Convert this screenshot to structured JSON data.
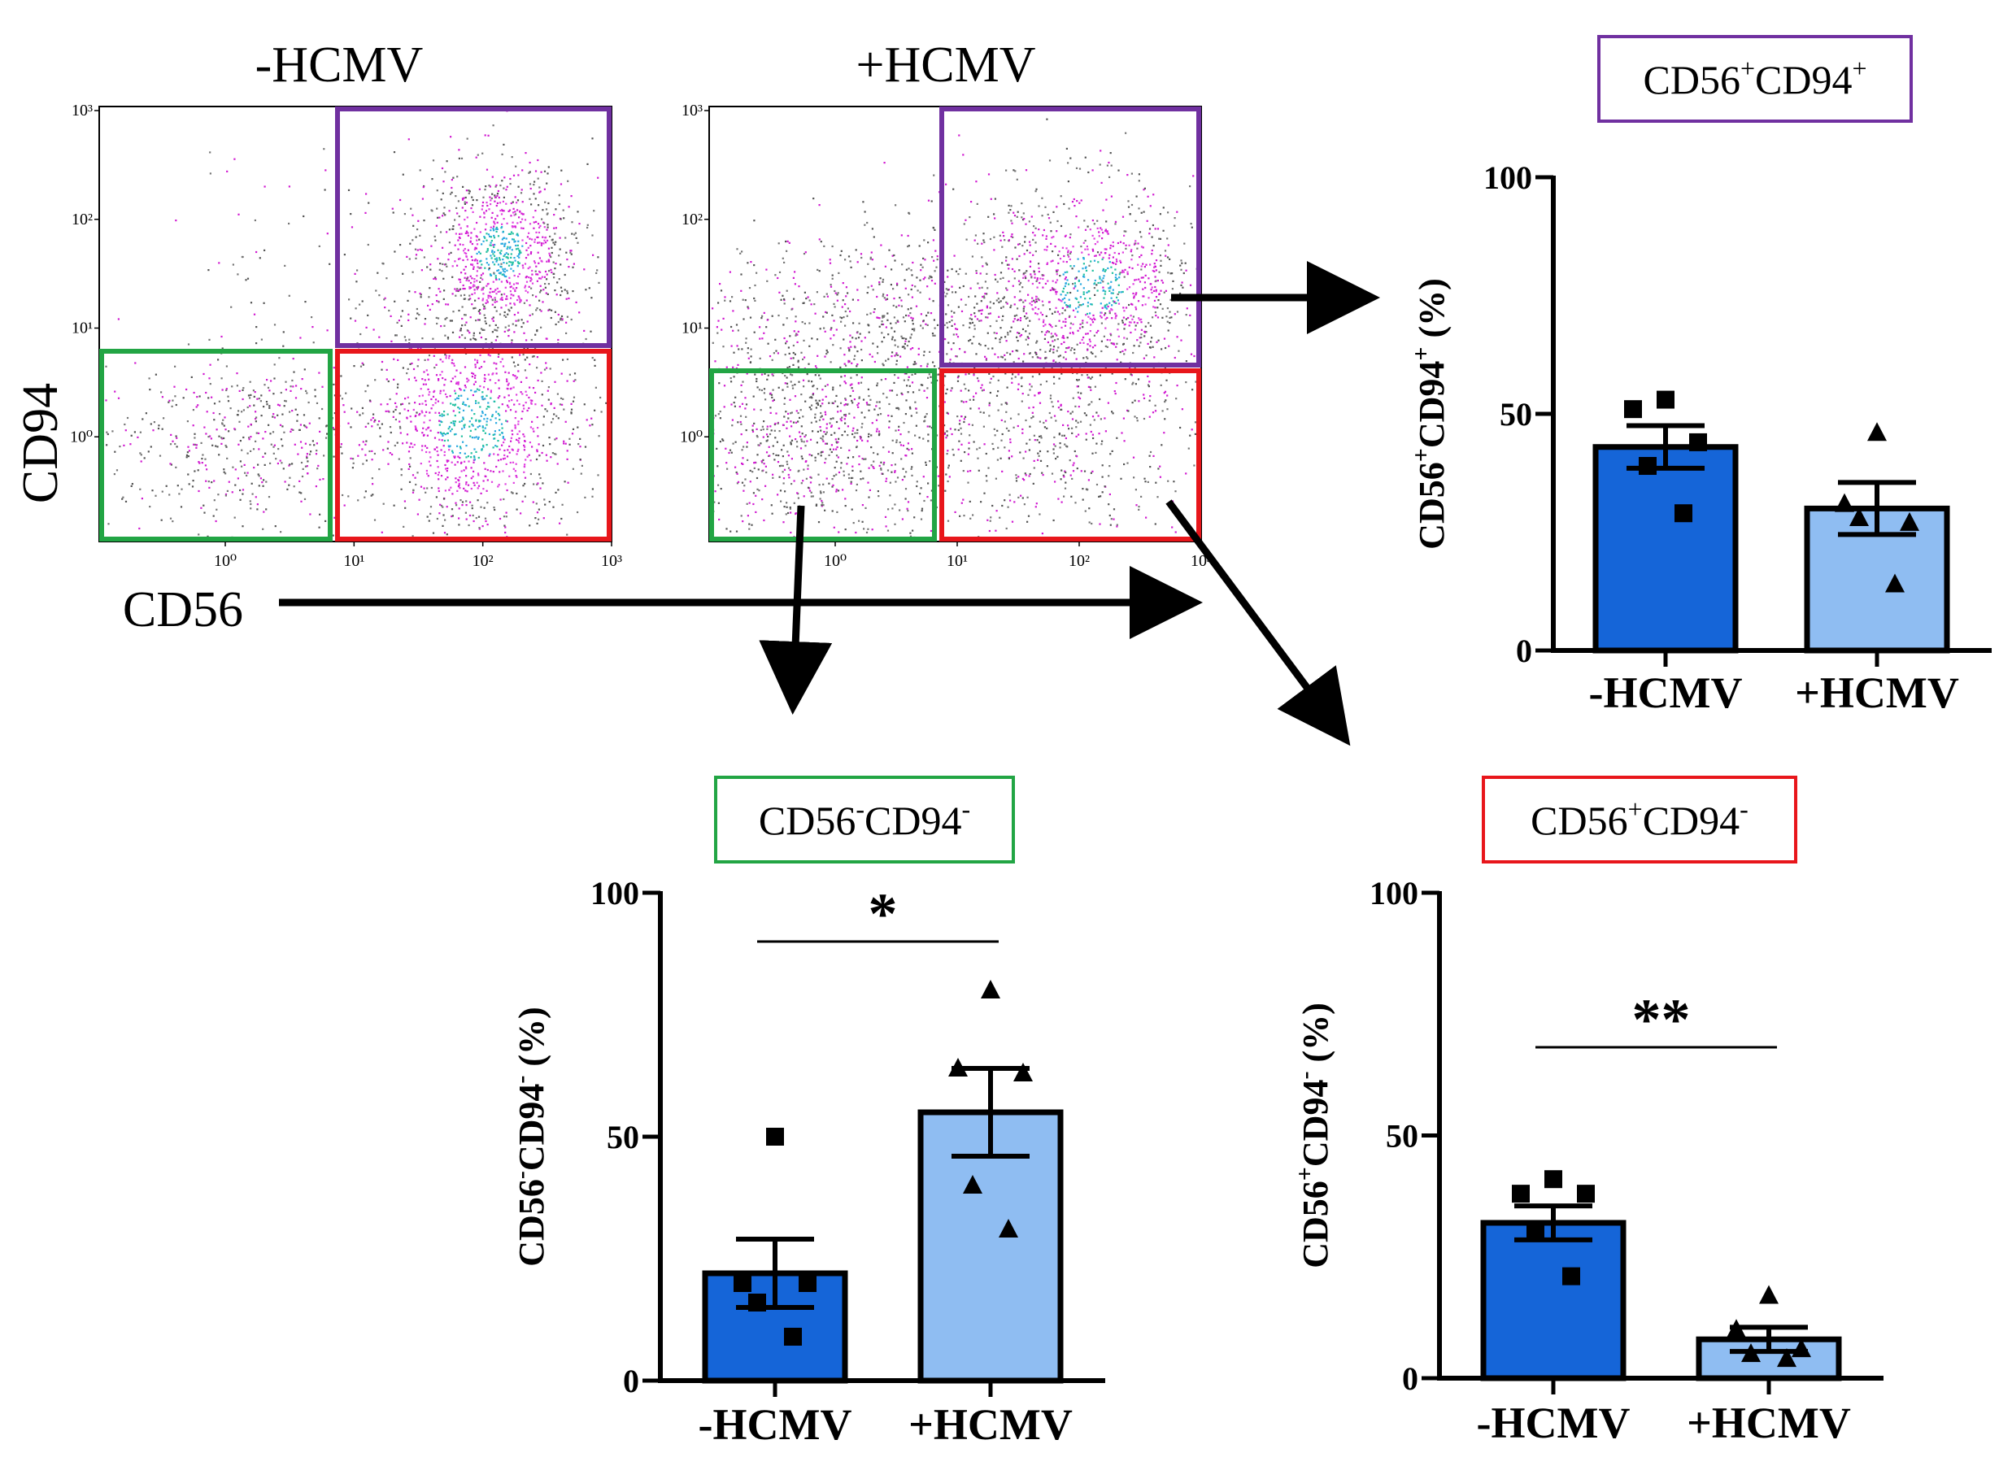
{
  "flow": {
    "panels": [
      {
        "label": "-HCMV",
        "x_ticks": [
          "10⁰",
          "10¹",
          "10²",
          "10³"
        ],
        "y_ticks": [
          "10³",
          "10²",
          "10¹",
          "10⁰"
        ]
      },
      {
        "label": "+HCMV",
        "x_ticks": [
          "10⁰",
          "10¹",
          "10²",
          "10³"
        ],
        "y_ticks": [
          "10³",
          "10²",
          "10¹",
          "10⁰"
        ]
      }
    ],
    "y_axis_label": "CD94",
    "x_axis_label": "CD56",
    "gate_colors": {
      "cd56pos_cd94pos": "#7030a0",
      "cd56neg_cd94neg": "#22a544",
      "cd56pos_cd94neg": "#e8161b"
    }
  },
  "colors": {
    "minus_bar": "#1565d8",
    "plus_bar": "#8fbdf2",
    "axis": "#000000"
  },
  "chart_data": [
    {
      "type": "bar",
      "id": "cd56pos_cd94pos",
      "title": "CD56⁺CD94⁺",
      "title_parts": {
        "a": "CD56",
        "a_sup": "+",
        "b": "CD94",
        "b_sup": "+"
      },
      "ylabel": "CD56⁺CD94⁺ (%)",
      "ylabel_parts": {
        "a": "CD56",
        "a_sup": "+",
        "b": "CD94",
        "b_sup": "+",
        "unit": " (%)"
      },
      "title_color": "#7030a0",
      "categories": [
        "-HCMV",
        "+HCMV"
      ],
      "means": [
        43,
        30
      ],
      "sem": [
        4.5,
        5.5
      ],
      "ylim": [
        0,
        100
      ],
      "yticks": [
        0,
        50,
        100
      ],
      "points": [
        {
          "group": 0,
          "marker": "square",
          "values": [
            53,
            51,
            44,
            39,
            29
          ]
        },
        {
          "group": 1,
          "marker": "triangle",
          "values": [
            46,
            31,
            27,
            28,
            14
          ]
        }
      ],
      "significance": ""
    },
    {
      "type": "bar",
      "id": "cd56neg_cd94neg",
      "title": "CD56⁻CD94⁻",
      "title_parts": {
        "a": "CD56",
        "a_sup": "-",
        "b": "CD94",
        "b_sup": "-"
      },
      "ylabel": "CD56⁻CD94⁻ (%)",
      "ylabel_parts": {
        "a": "CD56",
        "a_sup": "-",
        "b": "CD94",
        "b_sup": "-",
        "unit": " (%)"
      },
      "title_color": "#22a544",
      "categories": [
        "-HCMV",
        "+HCMV"
      ],
      "means": [
        22,
        55
      ],
      "sem": [
        7,
        9
      ],
      "ylim": [
        0,
        100
      ],
      "yticks": [
        0,
        50,
        100
      ],
      "points": [
        {
          "group": 0,
          "marker": "square",
          "values": [
            50,
            20,
            20,
            16,
            9
          ]
        },
        {
          "group": 1,
          "marker": "triangle",
          "values": [
            80,
            64,
            63,
            40,
            31
          ]
        }
      ],
      "significance": "*"
    },
    {
      "type": "bar",
      "id": "cd56pos_cd94neg",
      "title": "CD56⁺CD94⁻",
      "title_parts": {
        "a": "CD56",
        "a_sup": "+",
        "b": "CD94",
        "b_sup": "-"
      },
      "ylabel": "CD56⁺CD94⁻ (%)",
      "ylabel_parts": {
        "a": "CD56",
        "a_sup": "+",
        "b": "CD94",
        "b_sup": "-",
        "unit": " (%)"
      },
      "title_color": "#e8161b",
      "categories": [
        "-HCMV",
        "+HCMV"
      ],
      "means": [
        32,
        8
      ],
      "sem": [
        3.5,
        2.5
      ],
      "ylim": [
        0,
        100
      ],
      "yticks": [
        0,
        50,
        100
      ],
      "points": [
        {
          "group": 0,
          "marker": "square",
          "values": [
            41,
            38,
            38,
            30,
            21
          ]
        },
        {
          "group": 1,
          "marker": "triangle",
          "values": [
            17,
            10,
            6,
            5,
            4
          ]
        }
      ],
      "significance": "**"
    }
  ]
}
